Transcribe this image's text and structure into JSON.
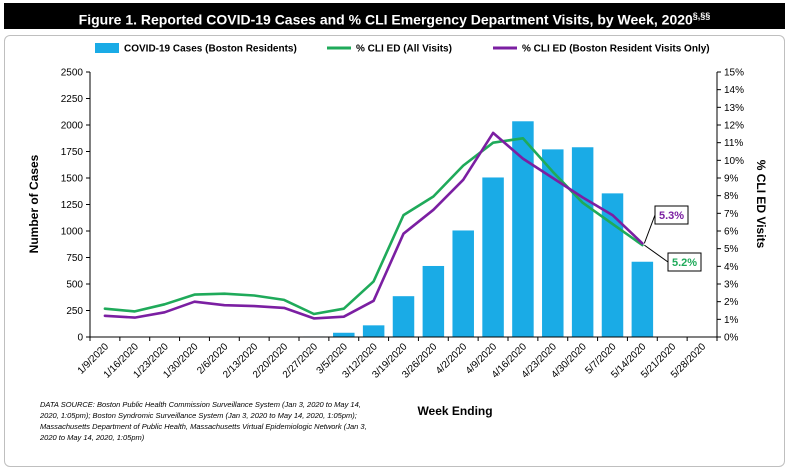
{
  "chart_data": {
    "type": "bar",
    "title": "Figure 1. Reported COVID-19 Cases and % CLI Emergency Department Visits, by Week, 2020",
    "title_sup": "§,§§",
    "xlabel": "Week Ending",
    "ylabel": "Number of Cases",
    "y2label": "% CLI ED Visits",
    "categories": [
      "1/9/2020",
      "1/16/2020",
      "1/23/2020",
      "1/30/2020",
      "2/6/2020",
      "2/13/2020",
      "2/20/2020",
      "2/27/2020",
      "3/5/2020",
      "3/12/2020",
      "3/19/2020",
      "3/26/2020",
      "4/2/2020",
      "4/9/2020",
      "4/16/2020",
      "4/23/2020",
      "4/30/2020",
      "5/7/2020",
      "5/14/2020",
      "5/21/2020",
      "5/28/2020"
    ],
    "ylim": [
      0,
      2500
    ],
    "yticks": [
      "0",
      "250",
      "500",
      "750",
      "1000",
      "1250",
      "1500",
      "1750",
      "2000",
      "2250",
      "2500"
    ],
    "y2lim": [
      0,
      15
    ],
    "y2ticks": [
      "0%",
      "1%",
      "2%",
      "3%",
      "4%",
      "5%",
      "6%",
      "7%",
      "8%",
      "9%",
      "10%",
      "11%",
      "12%",
      "13%",
      "14%",
      "15%"
    ],
    "series": [
      {
        "name": "COVID-19 Cases (Boston Residents)",
        "type": "bar",
        "axis": "left",
        "color": "#1aabe6",
        "values": [
          0,
          0,
          0,
          0,
          0,
          0,
          0,
          5,
          40,
          110,
          385,
          670,
          1005,
          1505,
          2035,
          1770,
          1790,
          1355,
          710,
          null,
          null
        ]
      },
      {
        "name": "% CLI ED (All Visits)",
        "type": "line",
        "axis": "right",
        "color": "#1faa5a",
        "values": [
          1.6,
          1.45,
          1.85,
          2.4,
          2.45,
          2.35,
          2.1,
          1.3,
          1.6,
          3.15,
          6.9,
          7.95,
          9.7,
          11.0,
          11.25,
          9.35,
          7.6,
          6.4,
          5.2,
          null,
          null
        ]
      },
      {
        "name": "% CLI ED (Boston Resident Visits Only)",
        "type": "line",
        "axis": "right",
        "color": "#7b1fa2",
        "values": [
          1.2,
          1.1,
          1.4,
          2.0,
          1.8,
          1.75,
          1.65,
          1.05,
          1.15,
          2.05,
          5.85,
          7.2,
          8.9,
          11.55,
          10.1,
          9.0,
          7.9,
          6.9,
          5.3,
          null,
          null
        ]
      }
    ],
    "annotations": [
      {
        "text": "5.3%",
        "series": 2,
        "index": 18,
        "color": "#7b1fa2"
      },
      {
        "text": "5.2%",
        "series": 1,
        "index": 18,
        "color": "#1faa5a"
      }
    ],
    "grid": false,
    "legend": "top"
  },
  "source_note": "DATA SOURCE: Boston Public Health Commission Surveillance System (Jan 3, 2020 to May 14, 2020, 1:05pm); Boston Syndromic Surveillance System (Jan 3, 2020 to May 14, 2020, 1:05pm); Massachusetts Department of Public Health, Massachusetts Virtual Epidemiologic Network (Jan 3, 2020 to May 14, 2020, 1:05pm)"
}
